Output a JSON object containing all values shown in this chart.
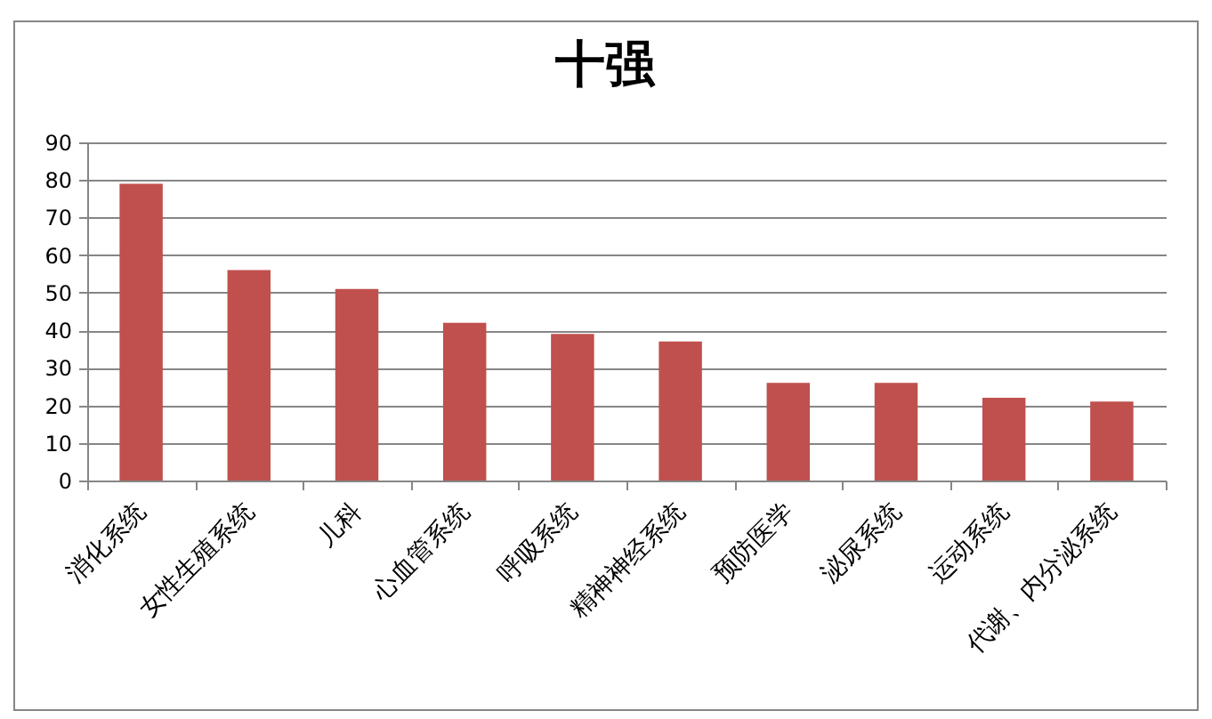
{
  "chart_data": {
    "type": "bar",
    "title": "十强",
    "categories": [
      "消化系统",
      "女性生殖系统",
      "儿科",
      "心血管系统",
      "呼吸系统",
      "精神神经系统",
      "预防医学",
      "泌尿系统",
      "运动系统",
      "代谢、内分泌系统"
    ],
    "values": [
      79,
      56,
      51,
      42,
      39,
      37,
      26,
      26,
      22,
      21
    ],
    "color": "#c0504d",
    "ylim": [
      0,
      90
    ],
    "yticks": [
      0,
      10,
      20,
      30,
      40,
      50,
      60,
      70,
      80,
      90
    ],
    "grid": "y"
  }
}
